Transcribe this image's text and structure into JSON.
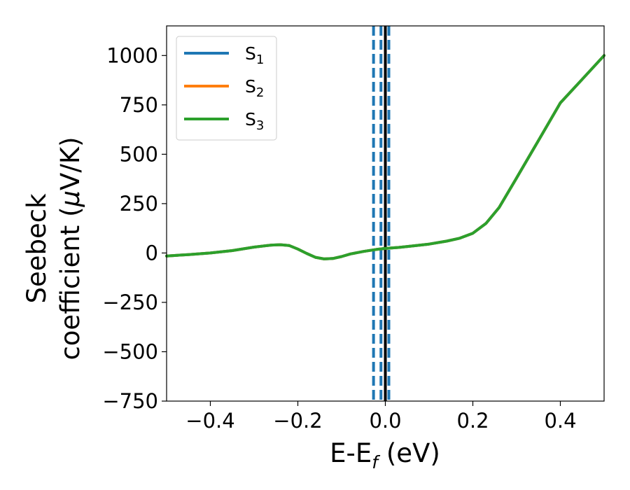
{
  "chart_data": {
    "type": "line",
    "xlabel": {
      "main": "E-E",
      "sub": "f",
      "tail": " (eV)"
    },
    "ylabel": {
      "line1": "Seebeck",
      "line2_prefix": "coefficient  (",
      "mu": "μ",
      "line2_suffix": "V/K)"
    },
    "xlim": [
      -0.5,
      0.5
    ],
    "ylim": [
      -750,
      1150
    ],
    "xticks": [
      -0.4,
      -0.2,
      0.0,
      0.2,
      0.4
    ],
    "xtick_labels": [
      "−0.4",
      "−0.2",
      "0.0",
      "0.2",
      "0.4"
    ],
    "yticks": [
      -750,
      -500,
      -250,
      0,
      250,
      500,
      750,
      1000
    ],
    "ytick_labels": [
      "−750",
      "−500",
      "−250",
      "0",
      "250",
      "500",
      "750",
      "1000"
    ],
    "grid": false,
    "legend_position": "top-left",
    "x": [
      -0.5,
      -0.45,
      -0.4,
      -0.35,
      -0.3,
      -0.26,
      -0.24,
      -0.22,
      -0.2,
      -0.18,
      -0.16,
      -0.14,
      -0.12,
      -0.1,
      -0.08,
      -0.05,
      -0.02,
      0.0,
      0.03,
      0.06,
      0.1,
      0.14,
      0.17,
      0.2,
      0.23,
      0.26,
      0.3,
      0.35,
      0.4,
      0.45,
      0.5
    ],
    "series": [
      {
        "name": "S",
        "subscript": "1",
        "color": "#1f77b4",
        "values": [
          -15,
          -8,
          0,
          12,
          30,
          40,
          42,
          38,
          20,
          -2,
          -22,
          -30,
          -28,
          -18,
          -5,
          8,
          18,
          23,
          28,
          35,
          45,
          60,
          75,
          100,
          150,
          230,
          380,
          570,
          760,
          880,
          1000
        ]
      },
      {
        "name": "S",
        "subscript": "2",
        "color": "#ff7f0e",
        "values": [
          -15,
          -8,
          0,
          12,
          30,
          40,
          42,
          38,
          20,
          -2,
          -22,
          -30,
          -28,
          -18,
          -5,
          8,
          18,
          23,
          28,
          35,
          45,
          60,
          75,
          100,
          150,
          230,
          380,
          570,
          760,
          880,
          1000
        ]
      },
      {
        "name": "S",
        "subscript": "3",
        "color": "#2ca02c",
        "values": [
          -15,
          -8,
          0,
          12,
          30,
          40,
          42,
          38,
          20,
          -2,
          -22,
          -30,
          -28,
          -18,
          -5,
          8,
          18,
          23,
          28,
          35,
          45,
          60,
          75,
          100,
          150,
          230,
          380,
          570,
          760,
          880,
          1000
        ]
      }
    ],
    "vlines": [
      {
        "x": -0.027,
        "style": "dashed",
        "color": "#1f77b4"
      },
      {
        "x": -0.01,
        "style": "dashed",
        "color": "#1f77b4"
      },
      {
        "x": 0.008,
        "style": "dashed",
        "color": "#1f77b4"
      },
      {
        "x": 0.0,
        "style": "solid",
        "color": "#000000"
      }
    ]
  }
}
